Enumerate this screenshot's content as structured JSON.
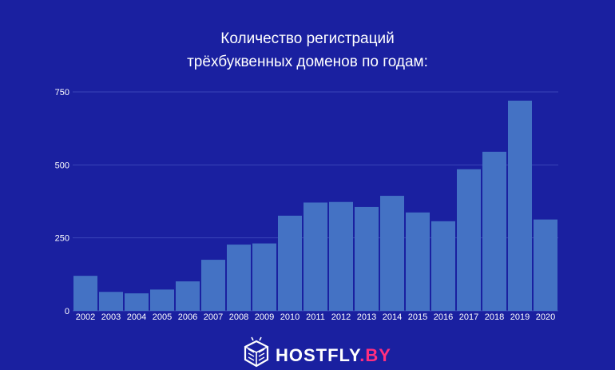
{
  "chart_data": {
    "type": "bar",
    "title_lines": [
      "Количество регистраций",
      "трёхбуквенных доменов по годам:"
    ],
    "xlabel": "",
    "ylabel": "",
    "categories": [
      "2002",
      "2003",
      "2004",
      "2005",
      "2006",
      "2007",
      "2008",
      "2009",
      "2010",
      "2011",
      "2012",
      "2013",
      "2014",
      "2015",
      "2016",
      "2017",
      "2018",
      "2019",
      "2020"
    ],
    "values": [
      120,
      65,
      60,
      73,
      101,
      175,
      227,
      231,
      326,
      371,
      373,
      356,
      394,
      337,
      307,
      485,
      545,
      720,
      313
    ],
    "ylim": [
      0,
      750
    ],
    "yticks": [
      0,
      250,
      500,
      750
    ],
    "grid": true,
    "legend": "none"
  },
  "colors": {
    "background": "#1a20a0",
    "bar": "#4472c4",
    "grid": "#3a44b8",
    "text": "#ffffff",
    "brand_pink": "#ff2e7e"
  },
  "brand": {
    "logo_icon": "hive-robot-icon",
    "name_part1": "HOSTFLY",
    "name_part2": ".BY"
  }
}
